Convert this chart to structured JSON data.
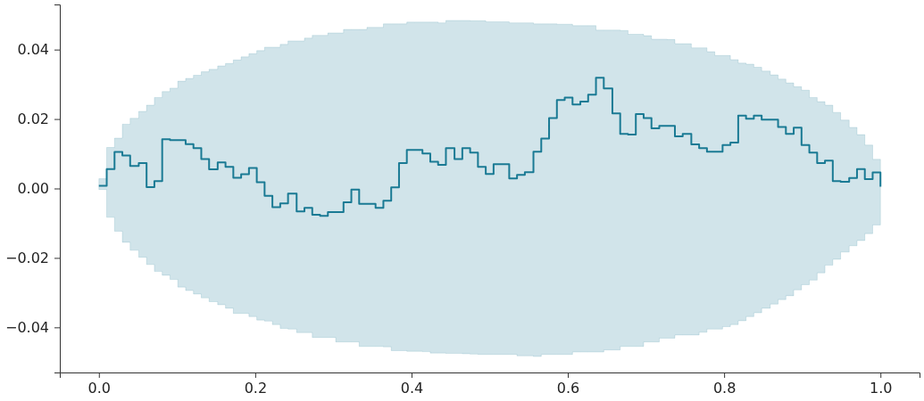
{
  "chart_data": {
    "type": "step",
    "x": [
      0,
      0.01,
      0.02,
      0.03,
      0.04,
      0.051,
      0.061,
      0.071,
      0.081,
      0.091,
      0.101,
      0.111,
      0.121,
      0.131,
      0.141,
      0.152,
      0.162,
      0.172,
      0.182,
      0.192,
      0.202,
      0.212,
      0.222,
      0.232,
      0.242,
      0.253,
      0.263,
      0.273,
      0.283,
      0.293,
      0.303,
      0.313,
      0.323,
      0.333,
      0.343,
      0.354,
      0.364,
      0.374,
      0.384,
      0.394,
      0.404,
      0.414,
      0.424,
      0.434,
      0.444,
      0.455,
      0.465,
      0.475,
      0.485,
      0.495,
      0.505,
      0.515,
      0.525,
      0.535,
      0.545,
      0.556,
      0.566,
      0.576,
      0.586,
      0.596,
      0.606,
      0.616,
      0.626,
      0.636,
      0.646,
      0.657,
      0.667,
      0.677,
      0.687,
      0.697,
      0.707,
      0.717,
      0.727,
      0.737,
      0.747,
      0.758,
      0.768,
      0.778,
      0.788,
      0.798,
      0.808,
      0.818,
      0.828,
      0.838,
      0.848,
      0.859,
      0.869,
      0.879,
      0.889,
      0.899,
      0.909,
      0.919,
      0.929,
      0.939,
      0.949,
      0.96,
      0.97,
      0.98,
      0.99,
      1
    ],
    "series": [
      {
        "color": "#1a7a94",
        "values": [
          0.0008,
          0.0056,
          0.0105,
          0.0095,
          0.0065,
          0.0073,
          0.0004,
          0.0021,
          0.0142,
          0.0139,
          0.0139,
          0.0128,
          0.0116,
          0.0085,
          0.0055,
          0.0075,
          0.0062,
          0.0031,
          0.0041,
          0.0059,
          0.0018,
          -0.0021,
          -0.0054,
          -0.0043,
          -0.0015,
          -0.0066,
          -0.0056,
          -0.0076,
          -0.0079,
          -0.0068,
          -0.0068,
          -0.004,
          -0.0003,
          -0.0044,
          -0.0044,
          -0.0056,
          -0.0035,
          0.0003,
          0.0073,
          0.0111,
          0.0111,
          0.0101,
          0.0077,
          0.0068,
          0.0116,
          0.0085,
          0.0116,
          0.0103,
          0.0062,
          0.0042,
          0.007,
          0.007,
          0.0029,
          0.0039,
          0.0047,
          0.0106,
          0.0144,
          0.0203,
          0.0255,
          0.0262,
          0.0242,
          0.025,
          0.027,
          0.0319,
          0.0288,
          0.0216,
          0.0157,
          0.0155,
          0.0214,
          0.0203,
          0.0173,
          0.018,
          0.018,
          0.015,
          0.0157,
          0.0127,
          0.0116,
          0.0106,
          0.0106,
          0.0125,
          0.0132,
          0.021,
          0.0201,
          0.021,
          0.0198,
          0.0198,
          0.0177,
          0.0157,
          0.0175,
          0.0125,
          0.0103,
          0.0073,
          0.008,
          0.0021,
          0.0019,
          0.003,
          0.0056,
          0.0027,
          0.0046,
          0.0005
        ],
        "upper": [
          0.0028,
          0.0118,
          0.0145,
          0.0185,
          0.0202,
          0.0222,
          0.024,
          0.0262,
          0.0279,
          0.0289,
          0.0309,
          0.0317,
          0.0326,
          0.0336,
          0.0343,
          0.0353,
          0.036,
          0.037,
          0.0379,
          0.0388,
          0.0397,
          0.0407,
          0.0407,
          0.0415,
          0.0425,
          0.0425,
          0.0433,
          0.0441,
          0.0441,
          0.0448,
          0.0448,
          0.0458,
          0.0458,
          0.0458,
          0.0464,
          0.0464,
          0.0474,
          0.0474,
          0.0474,
          0.0479,
          0.0479,
          0.0479,
          0.0479,
          0.0477,
          0.0484,
          0.0484,
          0.0484,
          0.0483,
          0.0483,
          0.048,
          0.048,
          0.048,
          0.0477,
          0.0477,
          0.0477,
          0.0474,
          0.0474,
          0.0474,
          0.0473,
          0.0473,
          0.0469,
          0.0469,
          0.0469,
          0.0456,
          0.0456,
          0.0456,
          0.0455,
          0.0444,
          0.0444,
          0.044,
          0.043,
          0.043,
          0.0429,
          0.0417,
          0.0417,
          0.0405,
          0.0405,
          0.0394,
          0.0383,
          0.0383,
          0.0371,
          0.0361,
          0.0358,
          0.0349,
          0.0338,
          0.0327,
          0.0315,
          0.0304,
          0.0293,
          0.0283,
          0.0262,
          0.025,
          0.024,
          0.0219,
          0.0197,
          0.0176,
          0.0155,
          0.0125,
          0.0084,
          0.0084
        ],
        "lower": [
          -0.0003,
          -0.0083,
          -0.0123,
          -0.0155,
          -0.0178,
          -0.0198,
          -0.0219,
          -0.0239,
          -0.025,
          -0.0262,
          -0.0284,
          -0.0294,
          -0.0304,
          -0.0315,
          -0.0326,
          -0.0335,
          -0.0345,
          -0.036,
          -0.036,
          -0.0369,
          -0.0379,
          -0.0382,
          -0.0392,
          -0.0403,
          -0.0405,
          -0.0415,
          -0.0415,
          -0.0429,
          -0.0429,
          -0.0429,
          -0.0442,
          -0.0442,
          -0.0442,
          -0.0455,
          -0.0455,
          -0.0455,
          -0.0456,
          -0.0467,
          -0.0467,
          -0.0469,
          -0.0469,
          -0.047,
          -0.0474,
          -0.0474,
          -0.0475,
          -0.0475,
          -0.0476,
          -0.0477,
          -0.0478,
          -0.0478,
          -0.0478,
          -0.0478,
          -0.0478,
          -0.0482,
          -0.0482,
          -0.0484,
          -0.0478,
          -0.0478,
          -0.0478,
          -0.0478,
          -0.0471,
          -0.0471,
          -0.0471,
          -0.0471,
          -0.0465,
          -0.0465,
          -0.0455,
          -0.0455,
          -0.0455,
          -0.0442,
          -0.0442,
          -0.0431,
          -0.0431,
          -0.0422,
          -0.0422,
          -0.0422,
          -0.0414,
          -0.0405,
          -0.0405,
          -0.0398,
          -0.0392,
          -0.0381,
          -0.0369,
          -0.0358,
          -0.0345,
          -0.0333,
          -0.032,
          -0.0309,
          -0.0292,
          -0.0277,
          -0.0264,
          -0.0243,
          -0.0221,
          -0.0204,
          -0.0183,
          -0.0165,
          -0.015,
          -0.013,
          -0.0105,
          -0.0105
        ]
      }
    ],
    "xlim": [
      -0.05,
      1.05
    ],
    "ylim": [
      -0.053,
      0.053
    ],
    "xticks": [
      {
        "value": 0,
        "label": "0.0"
      },
      {
        "value": 0.2,
        "label": "0.2"
      },
      {
        "value": 0.4,
        "label": "0.4"
      },
      {
        "value": 0.6,
        "label": "0.6"
      },
      {
        "value": 0.8,
        "label": "0.8"
      },
      {
        "value": 1,
        "label": "1.0"
      }
    ],
    "yticks": [
      {
        "value": -0.04,
        "label": "−0.04"
      },
      {
        "value": -0.02,
        "label": "−0.02"
      },
      {
        "value": 0,
        "label": "0.00"
      },
      {
        "value": 0.02,
        "label": "0.02"
      },
      {
        "value": 0.04,
        "label": "0.04"
      }
    ],
    "grid": false
  }
}
